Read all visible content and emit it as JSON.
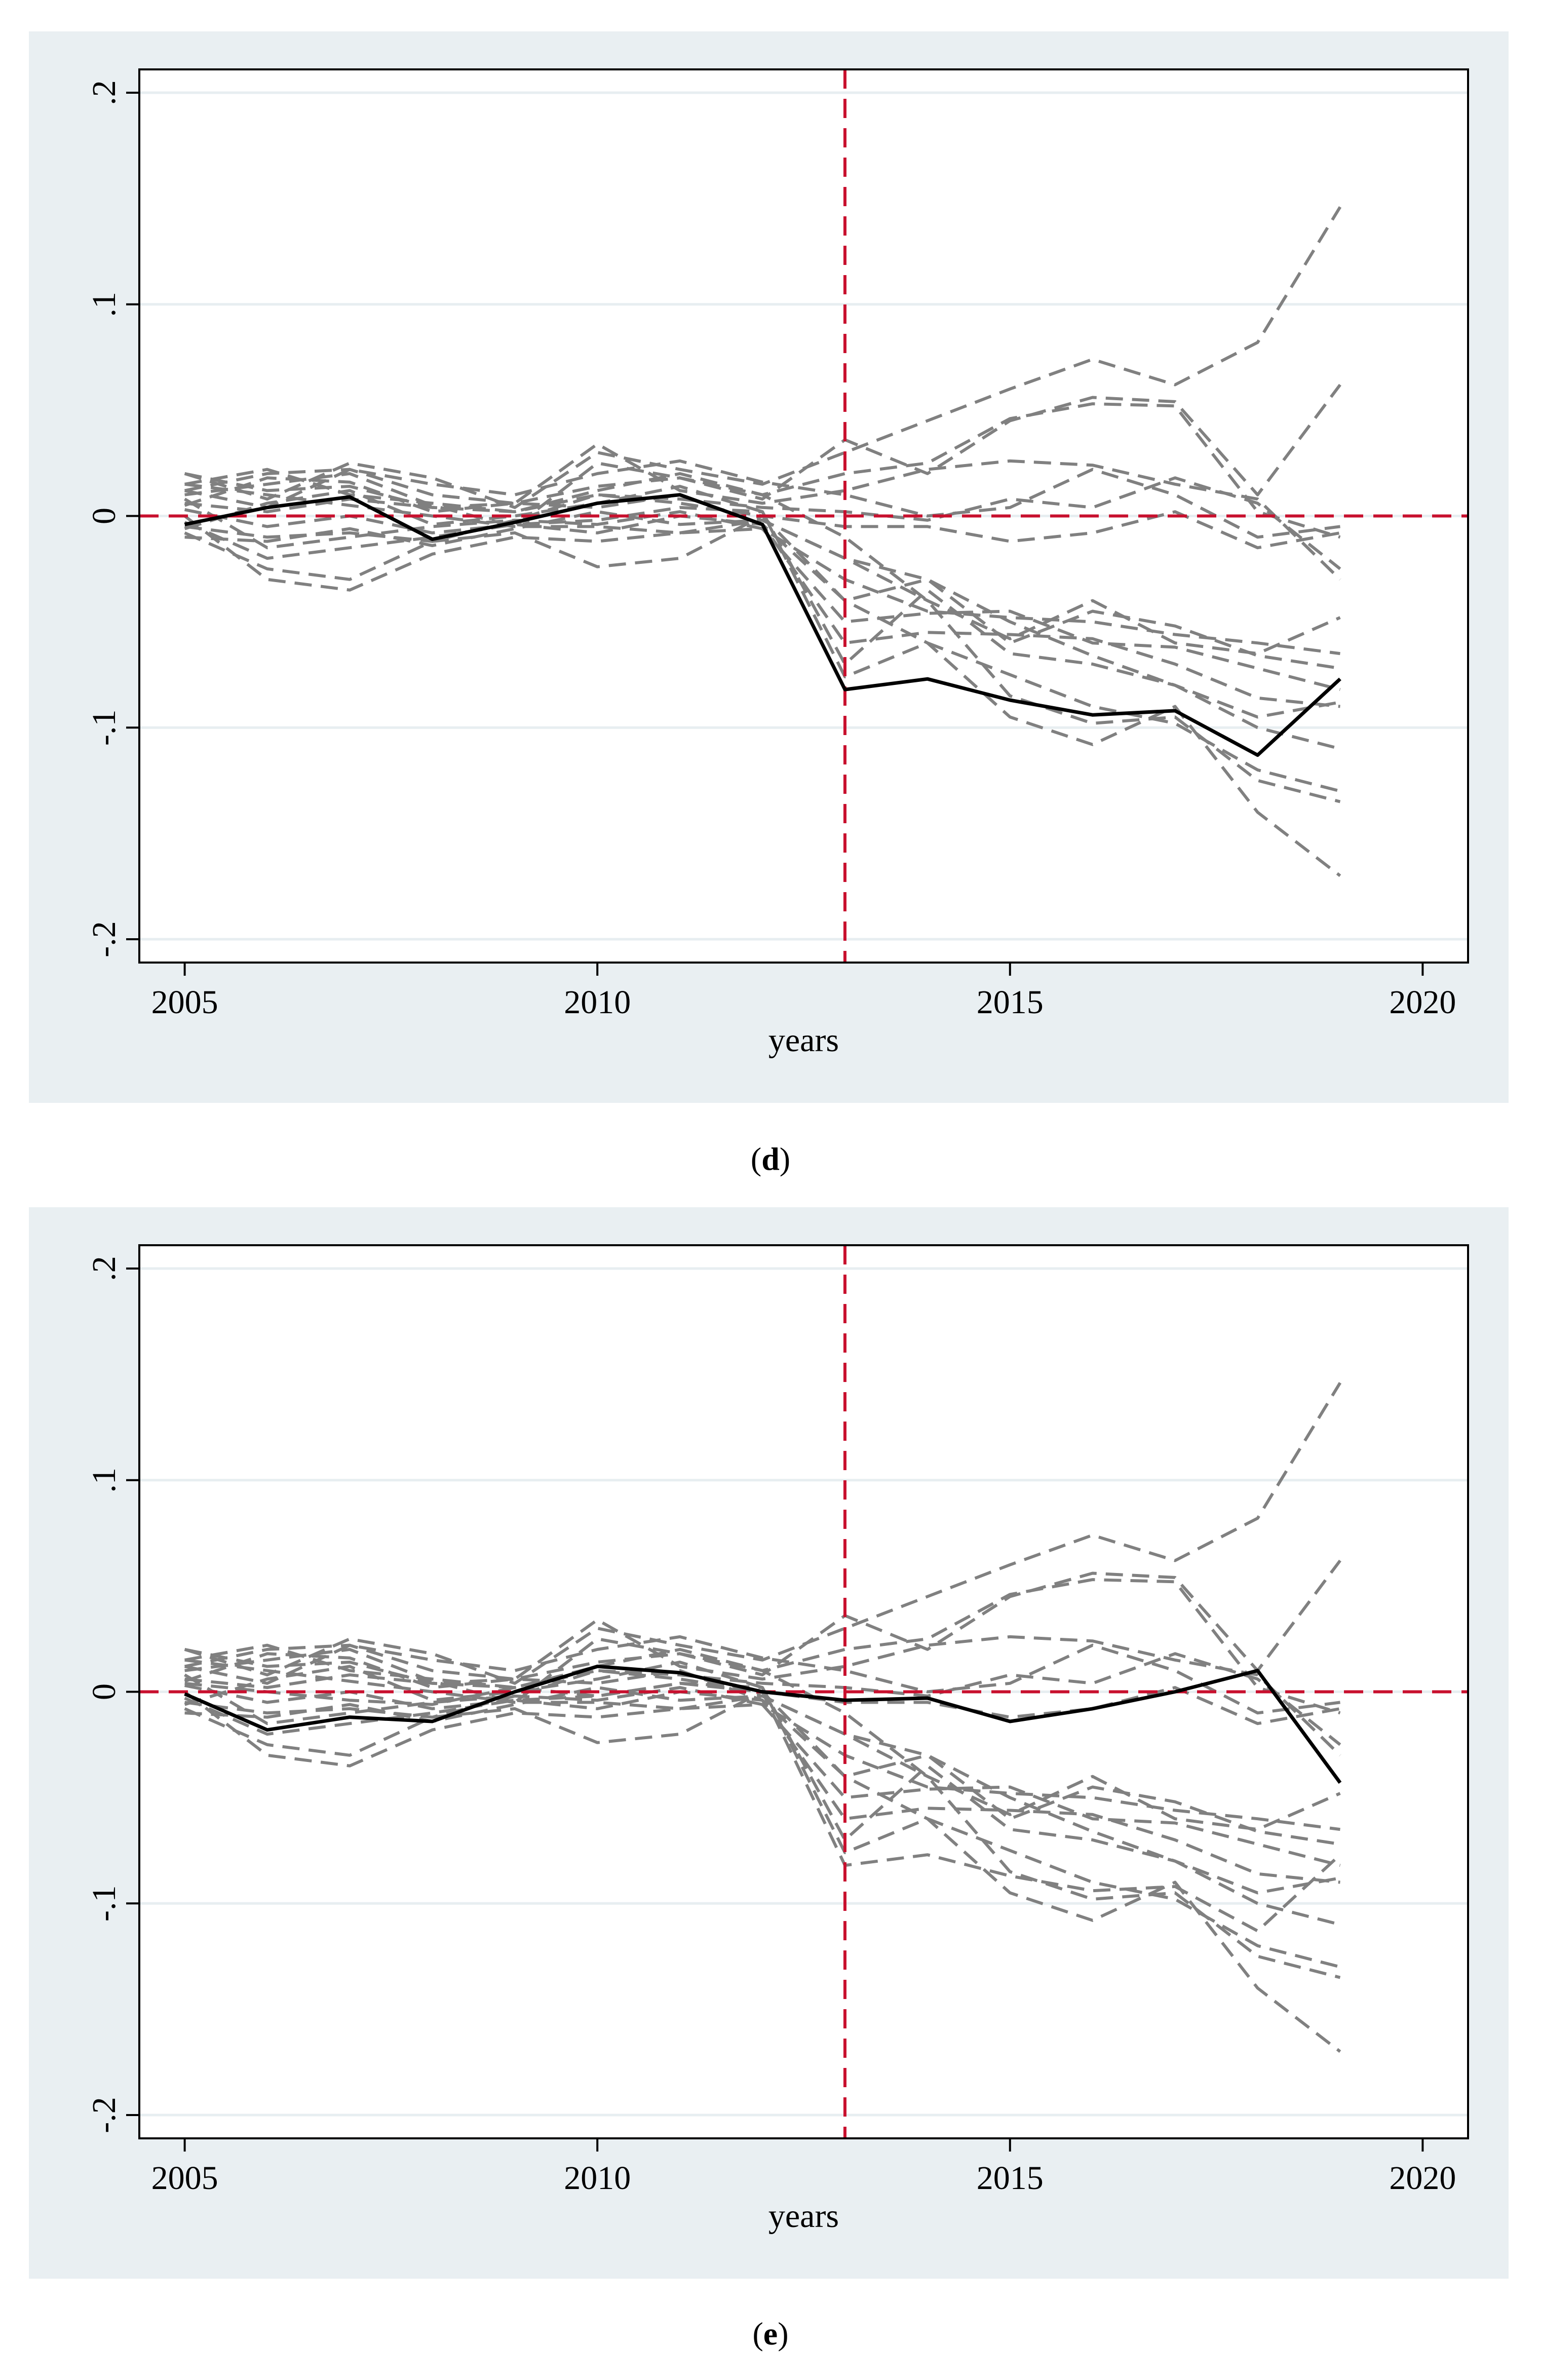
{
  "captions": [
    "d",
    "e"
  ],
  "chart_data": [
    {
      "type": "line",
      "panel_label": "d",
      "xlabel": "years",
      "ylabel": "",
      "xlim": [
        2005,
        2020
      ],
      "ylim": [
        -0.2,
        0.2
      ],
      "x_ticks": [
        2005,
        2010,
        2015,
        2020
      ],
      "x_tick_labels": [
        "2005",
        "2010",
        "2015",
        "2020"
      ],
      "y_ticks": [
        -0.2,
        -0.1,
        0,
        0.1,
        0.2
      ],
      "y_tick_labels": [
        "-.2",
        "-.1",
        "0",
        ".1",
        ".2"
      ],
      "grid": true,
      "reference_lines": {
        "x": 2013,
        "y": 0,
        "color": "#c8102e",
        "style": "dashed"
      },
      "x": [
        2005,
        2006,
        2007,
        2008,
        2009,
        2010,
        2011,
        2012,
        2013,
        2014,
        2015,
        2016,
        2017,
        2018,
        2019
      ],
      "treated": {
        "color": "#000000",
        "style": "solid",
        "values": [
          -0.004,
          0.004,
          0.009,
          -0.011,
          -0.003,
          0.006,
          0.01,
          -0.004,
          -0.082,
          -0.077,
          -0.087,
          -0.094,
          -0.092,
          -0.113,
          -0.077
        ]
      },
      "placebo_color": "#808080",
      "placebo": [
        [
          0.02,
          0.008,
          0.025,
          0.018,
          0.004,
          0.03,
          0.022,
          0.015,
          0.03,
          0.045,
          0.06,
          0.074,
          0.062,
          0.082,
          0.146
        ],
        [
          0.01,
          0.015,
          0.02,
          0.005,
          -0.005,
          0.025,
          0.018,
          0.008,
          0.036,
          0.02,
          0.045,
          0.056,
          0.054,
          0.01,
          0.062
        ],
        [
          0.015,
          0.022,
          0.01,
          0.006,
          0.002,
          0.012,
          0.02,
          0.01,
          0.02,
          0.025,
          0.046,
          0.053,
          0.052,
          0.002,
          -0.01
        ],
        [
          0.005,
          0.018,
          0.016,
          0.002,
          0.006,
          0.034,
          0.012,
          0.006,
          0.012,
          0.022,
          0.026,
          0.024,
          0.015,
          0.008,
          -0.03
        ],
        [
          -0.005,
          -0.01,
          -0.008,
          -0.012,
          -0.002,
          0.01,
          0.008,
          0.004,
          0.002,
          -0.002,
          0.008,
          0.004,
          0.018,
          0.006,
          -0.025
        ],
        [
          0.012,
          0.004,
          0.022,
          0.015,
          0.01,
          0.02,
          0.026,
          0.016,
          0.01,
          0.0,
          0.004,
          0.022,
          0.01,
          -0.01,
          -0.005
        ],
        [
          -0.008,
          -0.025,
          -0.03,
          -0.012,
          -0.008,
          -0.024,
          -0.02,
          0.0,
          -0.005,
          -0.005,
          -0.012,
          -0.008,
          0.002,
          -0.015,
          -0.008
        ],
        [
          0.0,
          -0.03,
          -0.035,
          -0.018,
          -0.01,
          -0.012,
          -0.008,
          -0.002,
          -0.02,
          -0.04,
          -0.058,
          -0.04,
          -0.06,
          -0.065,
          -0.048
        ],
        [
          0.008,
          -0.015,
          -0.01,
          -0.005,
          -0.002,
          -0.004,
          0.002,
          -0.006,
          -0.03,
          -0.045,
          -0.048,
          -0.05,
          -0.056,
          -0.06,
          -0.065
        ],
        [
          -0.003,
          -0.02,
          -0.015,
          -0.01,
          -0.004,
          -0.008,
          0.0,
          -0.004,
          -0.04,
          -0.03,
          -0.06,
          -0.045,
          -0.052,
          -0.066,
          -0.072
        ],
        [
          0.015,
          0.01,
          0.005,
          0.0,
          -0.005,
          -0.005,
          -0.008,
          -0.006,
          -0.05,
          -0.046,
          -0.045,
          -0.06,
          -0.062,
          -0.072,
          -0.082
        ],
        [
          0.02,
          0.012,
          0.014,
          0.004,
          0.006,
          0.004,
          0.01,
          -0.004,
          -0.06,
          -0.055,
          -0.056,
          -0.058,
          -0.07,
          -0.086,
          -0.09
        ],
        [
          0.003,
          -0.005,
          0.0,
          -0.008,
          -0.004,
          -0.002,
          0.004,
          0.002,
          -0.07,
          -0.035,
          -0.065,
          -0.07,
          -0.08,
          -0.095,
          -0.088
        ],
        [
          -0.006,
          0.006,
          0.012,
          -0.004,
          0.0,
          0.006,
          0.014,
          0.002,
          -0.076,
          -0.06,
          -0.075,
          -0.09,
          -0.098,
          -0.12,
          -0.13
        ],
        [
          0.012,
          0.02,
          0.022,
          0.01,
          0.006,
          0.014,
          0.018,
          0.01,
          -0.01,
          -0.04,
          -0.085,
          -0.098,
          -0.095,
          -0.125,
          -0.135
        ],
        [
          0.006,
          0.002,
          0.008,
          0.004,
          0.002,
          0.01,
          0.006,
          0.0,
          -0.04,
          -0.06,
          -0.095,
          -0.108,
          -0.09,
          -0.14,
          -0.17
        ],
        [
          -0.01,
          -0.012,
          -0.006,
          -0.014,
          -0.006,
          0.002,
          -0.004,
          -0.002,
          -0.02,
          -0.03,
          -0.05,
          -0.066,
          -0.08,
          -0.1,
          -0.11
        ]
      ]
    },
    {
      "type": "line",
      "panel_label": "e",
      "xlabel": "years",
      "ylabel": "",
      "xlim": [
        2005,
        2020
      ],
      "ylim": [
        -0.2,
        0.2
      ],
      "x_ticks": [
        2005,
        2010,
        2015,
        2020
      ],
      "x_tick_labels": [
        "2005",
        "2010",
        "2015",
        "2020"
      ],
      "y_ticks": [
        -0.2,
        -0.1,
        0,
        0.1,
        0.2
      ],
      "y_tick_labels": [
        "-.2",
        "-.1",
        "0",
        ".1",
        ".2"
      ],
      "grid": true,
      "reference_lines": {
        "x": 2013,
        "y": 0,
        "color": "#c8102e",
        "style": "dashed"
      },
      "x": [
        2005,
        2006,
        2007,
        2008,
        2009,
        2010,
        2011,
        2012,
        2013,
        2014,
        2015,
        2016,
        2017,
        2018,
        2019
      ],
      "treated": {
        "color": "#000000",
        "style": "solid",
        "values": [
          -0.001,
          -0.018,
          -0.012,
          -0.014,
          0.0,
          0.012,
          0.009,
          0.0,
          -0.004,
          -0.003,
          -0.014,
          -0.008,
          0.0,
          0.01,
          -0.043
        ]
      },
      "placebo_color": "#808080",
      "placebo": [
        [
          0.02,
          0.008,
          0.025,
          0.018,
          0.004,
          0.03,
          0.022,
          0.015,
          0.03,
          0.045,
          0.06,
          0.074,
          0.062,
          0.082,
          0.146
        ],
        [
          0.01,
          0.015,
          0.02,
          0.005,
          -0.005,
          0.025,
          0.018,
          0.008,
          0.036,
          0.02,
          0.045,
          0.056,
          0.054,
          0.01,
          0.062
        ],
        [
          0.015,
          0.022,
          0.01,
          0.006,
          0.002,
          0.012,
          0.02,
          0.01,
          0.02,
          0.025,
          0.046,
          0.053,
          0.052,
          0.002,
          -0.01
        ],
        [
          0.005,
          0.018,
          0.016,
          0.002,
          0.006,
          0.034,
          0.012,
          0.006,
          0.012,
          0.022,
          0.026,
          0.024,
          0.015,
          0.008,
          -0.03
        ],
        [
          -0.005,
          -0.01,
          -0.008,
          -0.012,
          -0.002,
          0.01,
          0.008,
          0.004,
          0.002,
          -0.002,
          0.008,
          0.004,
          0.018,
          0.006,
          -0.025
        ],
        [
          0.012,
          0.004,
          0.022,
          0.015,
          0.01,
          0.02,
          0.026,
          0.016,
          0.01,
          0.0,
          0.004,
          0.022,
          0.01,
          -0.01,
          -0.005
        ],
        [
          -0.008,
          -0.025,
          -0.03,
          -0.012,
          -0.008,
          -0.024,
          -0.02,
          0.0,
          -0.005,
          -0.005,
          -0.012,
          -0.008,
          0.002,
          -0.015,
          -0.008
        ],
        [
          0.0,
          -0.03,
          -0.035,
          -0.018,
          -0.01,
          -0.012,
          -0.008,
          -0.002,
          -0.02,
          -0.04,
          -0.058,
          -0.04,
          -0.06,
          -0.065,
          -0.048
        ],
        [
          0.008,
          -0.015,
          -0.01,
          -0.005,
          -0.002,
          -0.004,
          0.002,
          -0.006,
          -0.03,
          -0.045,
          -0.048,
          -0.05,
          -0.056,
          -0.06,
          -0.065
        ],
        [
          -0.003,
          -0.02,
          -0.015,
          -0.01,
          -0.004,
          -0.008,
          0.0,
          -0.004,
          -0.04,
          -0.03,
          -0.06,
          -0.045,
          -0.052,
          -0.066,
          -0.072
        ],
        [
          0.015,
          0.01,
          0.005,
          0.0,
          -0.005,
          -0.005,
          -0.008,
          -0.006,
          -0.05,
          -0.046,
          -0.045,
          -0.06,
          -0.062,
          -0.072,
          -0.082
        ],
        [
          0.02,
          0.012,
          0.014,
          0.004,
          0.006,
          0.004,
          0.01,
          -0.004,
          -0.06,
          -0.055,
          -0.056,
          -0.058,
          -0.07,
          -0.086,
          -0.09
        ],
        [
          0.003,
          -0.005,
          0.0,
          -0.008,
          -0.004,
          -0.002,
          0.004,
          0.002,
          -0.07,
          -0.035,
          -0.065,
          -0.07,
          -0.08,
          -0.095,
          -0.088
        ],
        [
          -0.006,
          0.006,
          0.012,
          -0.004,
          0.0,
          0.006,
          0.014,
          0.002,
          -0.076,
          -0.06,
          -0.075,
          -0.09,
          -0.098,
          -0.12,
          -0.13
        ],
        [
          0.012,
          0.02,
          0.022,
          0.01,
          0.006,
          0.014,
          0.018,
          0.01,
          -0.01,
          -0.04,
          -0.085,
          -0.098,
          -0.095,
          -0.125,
          -0.135
        ],
        [
          0.006,
          0.002,
          0.008,
          0.004,
          0.002,
          0.01,
          0.006,
          0.0,
          -0.04,
          -0.06,
          -0.095,
          -0.108,
          -0.09,
          -0.14,
          -0.17
        ],
        [
          -0.01,
          -0.012,
          -0.006,
          -0.014,
          -0.006,
          0.002,
          -0.004,
          -0.002,
          -0.02,
          -0.03,
          -0.05,
          -0.066,
          -0.08,
          -0.1,
          -0.11
        ],
        [
          0.004,
          0.0,
          -0.004,
          -0.006,
          0.002,
          -0.002,
          0.004,
          0.0,
          -0.082,
          -0.077,
          -0.087,
          -0.094,
          -0.092,
          -0.113,
          -0.077
        ]
      ]
    }
  ]
}
